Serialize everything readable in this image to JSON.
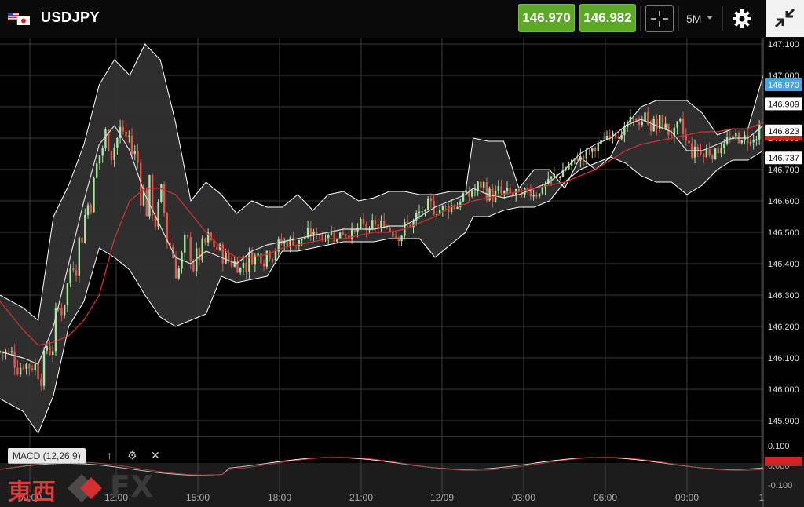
{
  "header": {
    "symbol": "USDJPY",
    "bid": "146.970",
    "ask": "146.982",
    "timeframe": "5M",
    "icons": [
      "us-jp-flag-icon",
      "crosshair-icon",
      "caret-down-icon",
      "gear-icon",
      "collapse-icon"
    ]
  },
  "colors": {
    "bull": "#a8e6a0",
    "bear": "#e2574c",
    "band_fill": "#333333",
    "band_line": "#ffffff",
    "middle_line": "#dddddd",
    "ma_line": "#d23030",
    "buy_green": "#5ea828",
    "price_label_blue": "#4aa3df",
    "price_label_red": "#d82020",
    "grid": "#3a3a3a"
  },
  "price_axis": {
    "ticks": [
      "147.100",
      "147.000",
      "146.900",
      "146.800",
      "146.700",
      "146.600",
      "146.500",
      "146.400",
      "146.300",
      "146.200",
      "146.100",
      "146.000",
      "145.900"
    ],
    "labels": [
      {
        "text": "146.970",
        "style": "blue"
      },
      {
        "text": "146.909",
        "style": "white"
      },
      {
        "text": "146.823",
        "style": "white"
      },
      {
        "text": "146.737",
        "style": "white"
      }
    ]
  },
  "time_axis": {
    "ticks": [
      "09:00",
      "12:00",
      "15:00",
      "18:00",
      "21:00",
      "12/09",
      "03:00",
      "06:00",
      "09:00",
      "1"
    ]
  },
  "macd": {
    "label": "MACD (12,26,9)",
    "ticks": [
      "0.100",
      "0.000",
      "-0.100"
    ],
    "tools": {
      "up": "↑",
      "settings": "⚙",
      "close": "✕"
    }
  },
  "watermark": {
    "text": "東西",
    "fx": "FX"
  },
  "chart_data": {
    "type": "candlestick",
    "symbol": "USDJPY",
    "interval": "5M",
    "ylim": [
      145.85,
      147.12
    ],
    "series": [
      {
        "name": "upper_band",
        "x": [
          0,
          0.03,
          0.05,
          0.07,
          0.09,
          0.11,
          0.13,
          0.15,
          0.17,
          0.19,
          0.21,
          0.23,
          0.25,
          0.27,
          0.29,
          0.31,
          0.33,
          0.35,
          0.37,
          0.39,
          0.41,
          0.43,
          0.45,
          0.47,
          0.49,
          0.51,
          0.53,
          0.55,
          0.57,
          0.59,
          0.61,
          0.62,
          0.64,
          0.66,
          0.68,
          0.7,
          0.72,
          0.74,
          0.76,
          0.78,
          0.8,
          0.82,
          0.84,
          0.86,
          0.88,
          0.9,
          0.92,
          0.94,
          0.96,
          0.98,
          1.0
        ],
        "y": [
          146.3,
          146.26,
          146.22,
          146.55,
          146.65,
          146.78,
          146.97,
          147.05,
          147.0,
          147.1,
          147.05,
          146.85,
          146.6,
          146.66,
          146.62,
          146.56,
          146.6,
          146.58,
          146.58,
          146.62,
          146.57,
          146.62,
          146.63,
          146.6,
          146.61,
          146.63,
          146.63,
          146.62,
          146.62,
          146.63,
          146.63,
          146.8,
          146.79,
          146.79,
          146.64,
          146.7,
          146.7,
          146.64,
          146.74,
          146.7,
          146.74,
          146.84,
          146.9,
          146.92,
          146.92,
          146.92,
          146.88,
          146.81,
          146.83,
          146.83,
          147.0
        ]
      },
      {
        "name": "middle_band",
        "x": [
          0,
          0.03,
          0.05,
          0.07,
          0.09,
          0.11,
          0.13,
          0.15,
          0.17,
          0.19,
          0.21,
          0.23,
          0.25,
          0.27,
          0.29,
          0.31,
          0.33,
          0.35,
          0.37,
          0.39,
          0.41,
          0.43,
          0.45,
          0.47,
          0.49,
          0.51,
          0.53,
          0.55,
          0.57,
          0.59,
          0.61,
          0.62,
          0.64,
          0.66,
          0.68,
          0.7,
          0.72,
          0.74,
          0.76,
          0.78,
          0.8,
          0.82,
          0.84,
          0.86,
          0.88,
          0.9,
          0.92,
          0.94,
          0.96,
          0.98,
          1.0
        ],
        "y": [
          146.12,
          146.1,
          146.08,
          146.2,
          146.4,
          146.6,
          146.78,
          146.84,
          146.76,
          146.62,
          146.52,
          146.42,
          146.4,
          146.44,
          146.42,
          146.4,
          146.44,
          146.46,
          146.47,
          146.48,
          146.49,
          146.5,
          146.51,
          146.51,
          146.51,
          146.52,
          146.52,
          146.55,
          146.58,
          146.6,
          146.62,
          146.64,
          146.62,
          146.61,
          146.62,
          146.64,
          146.66,
          146.7,
          146.75,
          146.78,
          146.8,
          146.84,
          146.86,
          146.84,
          146.82,
          146.76,
          146.76,
          146.78,
          146.8,
          146.8,
          146.84
        ]
      },
      {
        "name": "lower_band",
        "x": [
          0,
          0.03,
          0.05,
          0.07,
          0.09,
          0.11,
          0.13,
          0.15,
          0.17,
          0.19,
          0.21,
          0.23,
          0.25,
          0.27,
          0.29,
          0.31,
          0.33,
          0.35,
          0.37,
          0.39,
          0.41,
          0.43,
          0.45,
          0.47,
          0.49,
          0.51,
          0.53,
          0.55,
          0.57,
          0.59,
          0.61,
          0.62,
          0.64,
          0.66,
          0.68,
          0.7,
          0.72,
          0.74,
          0.76,
          0.78,
          0.8,
          0.82,
          0.84,
          0.86,
          0.88,
          0.9,
          0.92,
          0.94,
          0.96,
          0.98,
          1.0
        ],
        "y": [
          145.97,
          145.93,
          145.86,
          145.98,
          146.2,
          146.28,
          146.45,
          146.42,
          146.38,
          146.3,
          146.23,
          146.2,
          146.22,
          146.24,
          146.36,
          146.34,
          146.35,
          146.36,
          146.44,
          146.44,
          146.45,
          146.46,
          146.47,
          146.47,
          146.47,
          146.48,
          146.48,
          146.48,
          146.42,
          146.46,
          146.5,
          146.55,
          146.55,
          146.57,
          146.58,
          146.58,
          146.6,
          146.66,
          146.7,
          146.72,
          146.74,
          146.72,
          146.68,
          146.66,
          146.66,
          146.62,
          146.65,
          146.7,
          146.73,
          146.73,
          146.76
        ]
      },
      {
        "name": "moving_average",
        "x": [
          0,
          0.03,
          0.05,
          0.07,
          0.09,
          0.11,
          0.13,
          0.15,
          0.17,
          0.19,
          0.21,
          0.23,
          0.25,
          0.27,
          0.29,
          0.31,
          0.33,
          0.35,
          0.37,
          0.39,
          0.41,
          0.43,
          0.45,
          0.47,
          0.49,
          0.51,
          0.53,
          0.55,
          0.57,
          0.59,
          0.61,
          0.62,
          0.64,
          0.66,
          0.68,
          0.7,
          0.72,
          0.74,
          0.76,
          0.78,
          0.8,
          0.82,
          0.84,
          0.86,
          0.88,
          0.9,
          0.92,
          0.94,
          0.96,
          0.98,
          1.0
        ],
        "y": [
          146.28,
          146.19,
          146.14,
          146.15,
          146.17,
          146.22,
          146.3,
          146.48,
          146.6,
          146.64,
          146.64,
          146.62,
          146.56,
          146.5,
          146.45,
          146.42,
          146.42,
          146.43,
          146.45,
          146.46,
          146.47,
          146.48,
          146.48,
          146.49,
          146.5,
          146.5,
          146.51,
          146.53,
          146.55,
          146.58,
          146.59,
          146.6,
          146.61,
          146.62,
          146.63,
          146.64,
          146.65,
          146.66,
          146.68,
          146.7,
          146.73,
          146.76,
          146.78,
          146.79,
          146.8,
          146.81,
          146.82,
          146.82,
          146.83,
          146.83,
          146.85
        ]
      }
    ],
    "last_price": 146.97,
    "indicators": [
      "Bollinger Bands",
      "Moving Average",
      "MACD (12,26,9)"
    ]
  }
}
